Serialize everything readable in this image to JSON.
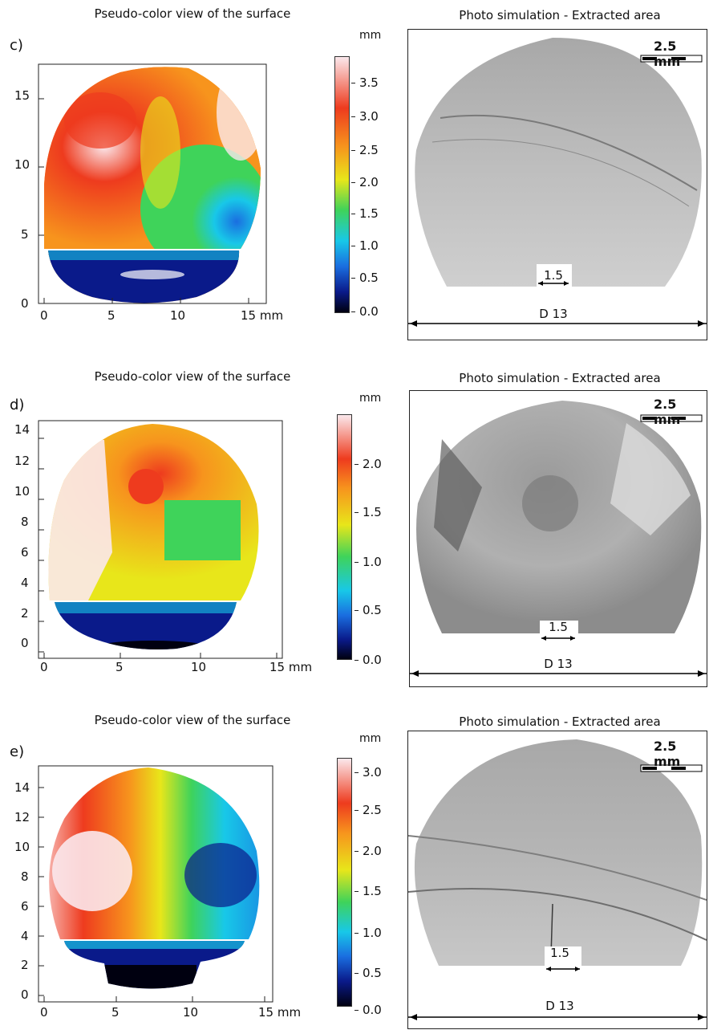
{
  "rows": [
    {
      "id": "c",
      "letter": "c)",
      "map_title": "Pseudo-color view of the surface",
      "photo_title": "Photo simulation - Extracted area",
      "unit": "mm",
      "y_ticks": [
        "15",
        "10",
        "5",
        "0"
      ],
      "x_ticks": [
        "0",
        "5",
        "10",
        "15 mm"
      ],
      "colorbar_ticks": [
        "3.5",
        "3.0",
        "2.5",
        "2.0",
        "1.5",
        "1.0",
        "0.5",
        "0.0"
      ],
      "scale_bar_label": "2.5 mm",
      "notch_label": "1.5",
      "diameter_label": "D 13"
    },
    {
      "id": "d",
      "letter": "d)",
      "map_title": "Pseudo-color view of the surface",
      "photo_title": "Photo simulation - Extracted area",
      "unit": "mm",
      "y_ticks": [
        "14",
        "12",
        "10",
        "8",
        "6",
        "4",
        "2",
        "0"
      ],
      "x_ticks": [
        "0",
        "5",
        "10",
        "15 mm"
      ],
      "colorbar_ticks": [
        "2.0",
        "1.5",
        "1.0",
        "0.5",
        "0.0"
      ],
      "scale_bar_label": "2.5 mm",
      "notch_label": "1.5",
      "diameter_label": "D 13"
    },
    {
      "id": "e",
      "letter": "e)",
      "map_title": "Pseudo-color view of the surface",
      "photo_title": "Photo simulation - Extracted area",
      "unit": "mm",
      "y_ticks": [
        "14",
        "12",
        "10",
        "8",
        "6",
        "4",
        "2",
        "0"
      ],
      "x_ticks": [
        "0",
        "5",
        "10",
        "15 mm"
      ],
      "colorbar_ticks": [
        "3.0",
        "2.5",
        "2.0",
        "1.5",
        "1.0",
        "0.5",
        "0.0"
      ],
      "scale_bar_label": "2.5 mm",
      "notch_label": "1.5",
      "diameter_label": "D 13"
    }
  ],
  "colors": {
    "white_high": "#fbe8ec",
    "red": "#ee3b1e",
    "orange": "#f7941d",
    "yellow": "#e8e61a",
    "green": "#3fd35a",
    "cyan": "#18c8e8",
    "blue": "#1a6ee0",
    "navy": "#0a1a8a",
    "black_low": "#000010",
    "photo_gray": "#b9b9b9"
  }
}
